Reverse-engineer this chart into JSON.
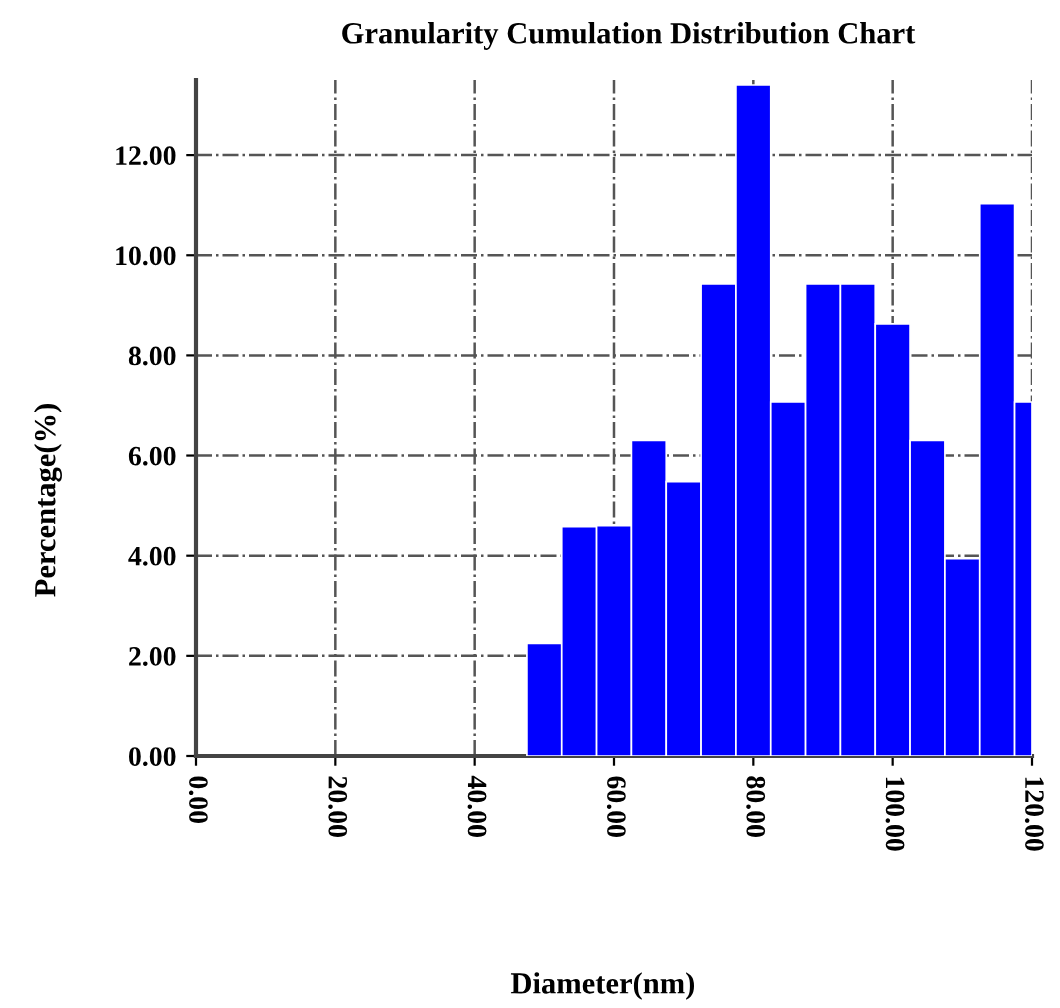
{
  "chart_data": {
    "type": "histogram",
    "title": "Granularity Cumulation Distribution Chart",
    "xlabel": "Diameter(nm)",
    "ylabel": "Percentage(%)",
    "bins": [
      47.5,
      52.5,
      57.5,
      62.5,
      67.5,
      72.5,
      77.5,
      82.5,
      87.5,
      92.5,
      97.5,
      102.5,
      107.5,
      112.5,
      117.5,
      120
    ],
    "values": [
      2.25,
      4.58,
      4.6,
      6.3,
      5.48,
      9.43,
      13.4,
      7.07,
      9.43,
      9.43,
      8.63,
      6.3,
      3.94,
      11.03,
      7.07
    ],
    "color": "#0000ff",
    "xlim": [
      0,
      120
    ],
    "xticks": [
      {
        "value": 0,
        "label": "0.00"
      },
      {
        "value": 20,
        "label": "20.00"
      },
      {
        "value": 40,
        "label": "40.00"
      },
      {
        "value": 60,
        "label": "60.00"
      },
      {
        "value": 80,
        "label": "80.00"
      },
      {
        "value": 100,
        "label": "100.00"
      },
      {
        "value": 120,
        "label": "120.00"
      }
    ],
    "ylim": [
      0,
      13.5
    ],
    "yticks": [
      {
        "value": 0,
        "label": "0.00"
      },
      {
        "value": 2,
        "label": "2.00"
      },
      {
        "value": 4,
        "label": "4.00"
      },
      {
        "value": 6,
        "label": "6.00"
      },
      {
        "value": 8,
        "label": "8.00"
      },
      {
        "value": 10,
        "label": "10.00"
      },
      {
        "value": 12,
        "label": "12.00"
      }
    ],
    "grid": true
  }
}
